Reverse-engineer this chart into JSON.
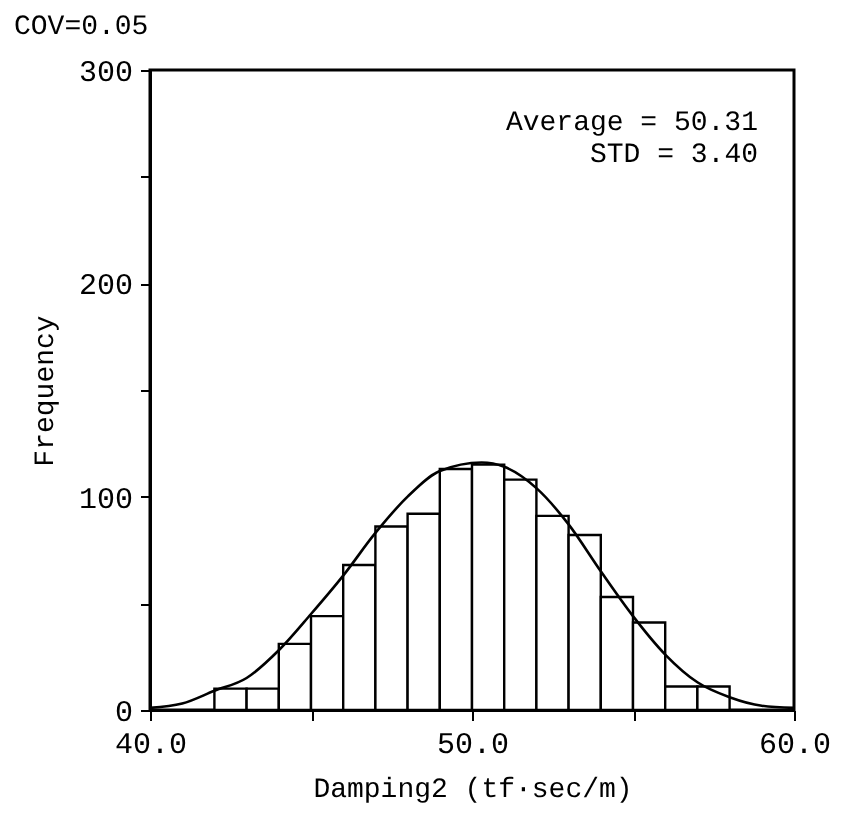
{
  "chart_data": {
    "type": "histogram",
    "title": "COV=0.05",
    "xlabel": "Damping2 (tf·sec/m)",
    "ylabel": "Frequency",
    "annotations": [
      "Average = 50.31",
      "STD = 3.40"
    ],
    "xlim": [
      40,
      60
    ],
    "xticks": [
      {
        "value": 40,
        "label": "40.0"
      },
      {
        "value": 45,
        "label": null
      },
      {
        "value": 50,
        "label": "50.0"
      },
      {
        "value": 55,
        "label": null
      },
      {
        "value": 60,
        "label": "60.0"
      }
    ],
    "ylim": [
      0,
      300
    ],
    "yticks": [
      0,
      {
        "value": 50,
        "label": null
      },
      100,
      {
        "value": 150,
        "label": null
      },
      200,
      {
        "value": 250,
        "label": null
      },
      300
    ],
    "grid": false,
    "series": [
      {
        "color": "#ffffff",
        "bins": [
          42,
          43,
          44,
          45,
          46,
          47,
          48,
          49,
          50,
          51,
          52,
          53,
          54,
          55,
          56,
          57,
          58
        ],
        "values": [
          10,
          10,
          31,
          44,
          68,
          86,
          92,
          113,
          115,
          108,
          91,
          82,
          53,
          41,
          11,
          11
        ]
      },
      {
        "type": "line",
        "color": "#000000",
        "x": [
          40,
          41,
          42,
          43,
          44,
          45,
          46,
          47,
          48,
          49,
          50.3,
          51,
          52,
          53,
          54,
          55,
          56,
          57,
          58,
          59,
          60
        ],
        "values": [
          1,
          3,
          9,
          15,
          28,
          45,
          63,
          83,
          100,
          112,
          116,
          114,
          104,
          87,
          65,
          44,
          26,
          13,
          6,
          2,
          1
        ]
      }
    ]
  }
}
